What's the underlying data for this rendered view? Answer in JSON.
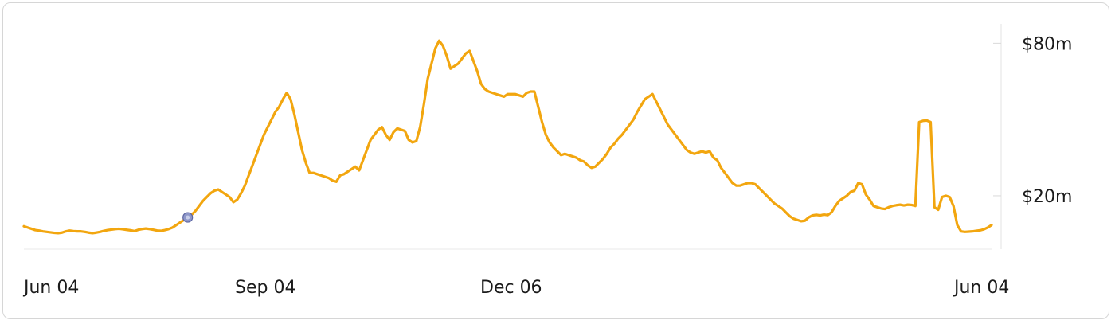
{
  "chart_data": {
    "type": "line",
    "color": "#f2a60f",
    "marker_color": "#8e97c9",
    "marker_index": 43,
    "x_tick_labels": [
      "Jun 04",
      "Sep 04",
      "Dec 06",
      "Jun 04"
    ],
    "x_tick_positions": [
      0,
      64,
      135,
      256
    ],
    "y_ticks": [
      {
        "value": 80,
        "label": "$80m"
      },
      {
        "value": 20,
        "label": "$20m"
      }
    ],
    "ylim": [
      -1,
      87
    ],
    "y_unit": "$m",
    "grid": false,
    "legend": "none",
    "values": [
      8,
      7.5,
      7,
      6.5,
      6.3,
      6,
      5.8,
      5.6,
      5.4,
      5.3,
      5.5,
      6,
      6.3,
      6.1,
      6,
      6,
      5.8,
      5.5,
      5.3,
      5.5,
      5.8,
      6.2,
      6.5,
      6.7,
      6.9,
      7.0,
      6.8,
      6.6,
      6.4,
      6.1,
      6.6,
      6.9,
      7.1,
      6.9,
      6.6,
      6.3,
      6.2,
      6.5,
      6.9,
      7.5,
      8.5,
      9.5,
      10.5,
      11.5,
      12.5,
      14,
      16,
      18,
      19.5,
      21,
      22,
      22.5,
      21.5,
      20.5,
      19.5,
      17.5,
      18.5,
      21,
      24,
      28,
      32,
      36,
      40,
      44,
      47,
      50,
      53,
      55,
      58,
      60.5,
      58,
      52,
      45,
      38,
      33,
      29,
      29,
      28.5,
      28,
      27.5,
      27,
      26,
      25.5,
      28,
      28.5,
      29.5,
      30.5,
      31.5,
      30,
      34,
      38,
      42,
      44,
      46,
      47,
      44,
      42,
      45,
      46.5,
      46,
      45.5,
      42,
      41,
      41.5,
      47,
      56,
      66,
      72,
      78,
      81,
      79,
      75,
      70,
      71,
      72,
      74,
      76,
      77,
      73,
      69,
      64,
      62,
      61,
      60.5,
      60,
      59.5,
      59,
      60,
      60,
      60,
      59.5,
      59,
      60.5,
      61,
      61,
      55,
      49,
      44,
      41,
      39,
      37.5,
      36,
      36.5,
      36,
      35.5,
      35,
      34,
      33.5,
      32,
      31,
      31.5,
      33,
      34.5,
      36.5,
      39,
      40.5,
      42.5,
      44,
      46,
      48,
      50,
      53,
      55.5,
      58,
      59,
      60,
      57,
      54,
      51,
      48,
      46,
      44,
      42,
      40,
      38,
      37,
      36.5,
      37,
      37.5,
      37,
      37.5,
      35,
      34,
      31,
      29,
      27,
      25,
      24,
      24,
      24.5,
      25,
      25,
      24.5,
      23,
      21.5,
      20,
      18.5,
      17,
      16,
      15,
      13.5,
      12,
      11,
      10.5,
      10,
      10.2,
      11.5,
      12.3,
      12.5,
      12.3,
      12.6,
      12.4,
      13.5,
      16,
      18,
      19,
      20,
      21.5,
      22,
      25,
      24.5,
      20.5,
      18.5,
      16,
      15.5,
      15.0,
      14.8,
      15.5,
      16,
      16.3,
      16.5,
      16.2,
      16.5,
      16.4,
      16.0,
      49,
      49.5,
      49.6,
      49,
      15.5,
      14.5,
      19.5,
      20,
      19.5,
      16,
      8.5,
      6.0,
      5.8,
      5.9,
      6.0,
      6.2,
      6.4,
      6.8,
      7.5,
      8.5
    ]
  }
}
